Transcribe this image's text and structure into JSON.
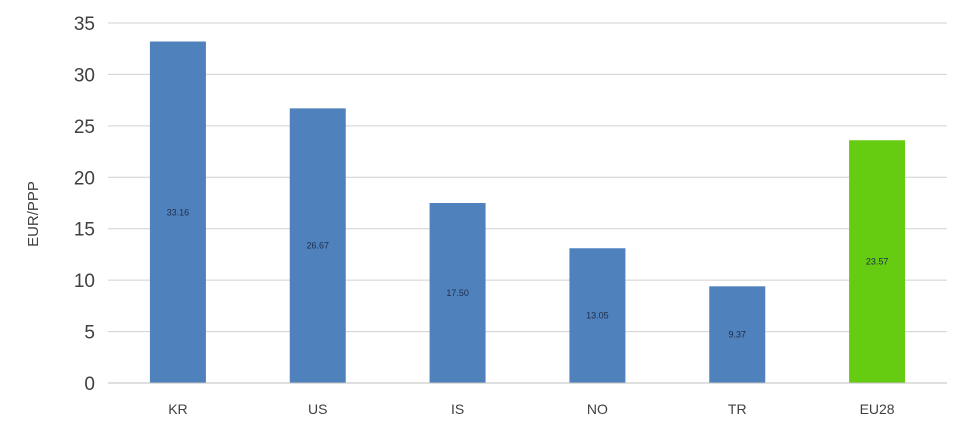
{
  "chart_data": {
    "type": "bar",
    "title": "",
    "xlabel": "",
    "ylabel": "EUR/PPP",
    "ylim": [
      0,
      35
    ],
    "yticks": [
      "0",
      "5",
      "10",
      "15",
      "20",
      "25",
      "30",
      "35"
    ],
    "grid": true,
    "legend": "none",
    "categories": [
      "KR",
      "US",
      "IS",
      "NO",
      "TR",
      "EU28"
    ],
    "values": [
      33.2,
      26.7,
      17.5,
      13.1,
      9.4,
      23.6
    ],
    "data_labels": [
      "33.16",
      "26.67",
      "17.50",
      "13.05",
      "9.37",
      "23.57"
    ],
    "colors": [
      "#4f81bd",
      "#4f81bd",
      "#4f81bd",
      "#4f81bd",
      "#4f81bd",
      "#66cc11"
    ],
    "series": [
      {
        "name": "",
        "values": [
          33.2,
          26.7,
          17.5,
          13.1,
          9.4,
          23.6
        ]
      }
    ]
  }
}
